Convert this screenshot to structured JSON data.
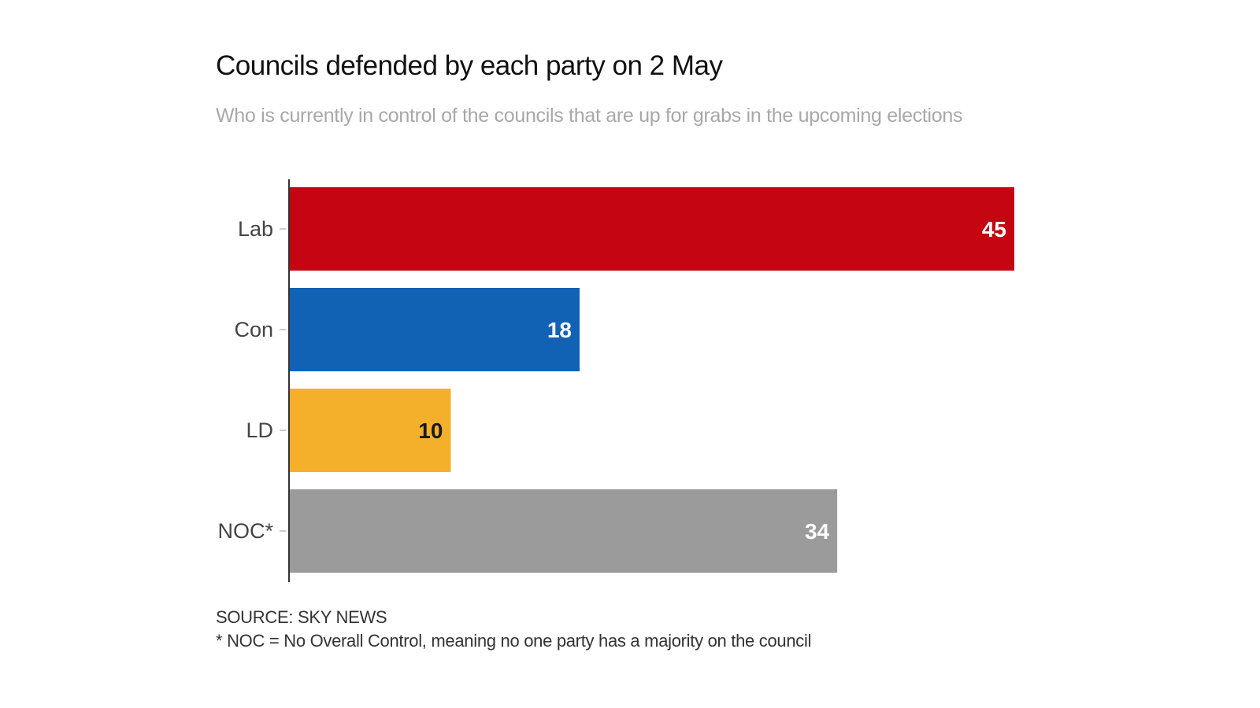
{
  "chart_data": {
    "type": "bar",
    "orientation": "horizontal",
    "title": "Councils defended by each party on 2 May",
    "subtitle": "Who is currently in control of the councils that are up for grabs in the upcoming elections",
    "categories": [
      "Lab",
      "Con",
      "LD",
      "NOC*"
    ],
    "values": [
      45,
      18,
      10,
      34
    ],
    "colors": [
      "#c50612",
      "#1161b5",
      "#f5b02b",
      "#9b9b9b"
    ],
    "label_colors": [
      "#ffffff",
      "#ffffff",
      "#1a1a1a",
      "#ffffff"
    ],
    "xlim": [
      0,
      45
    ],
    "grid": false,
    "data_labels": true
  },
  "footer": {
    "source": "SOURCE: SKY NEWS",
    "note": "* NOC = No Overall Control, meaning no one party has a majority on the council"
  }
}
